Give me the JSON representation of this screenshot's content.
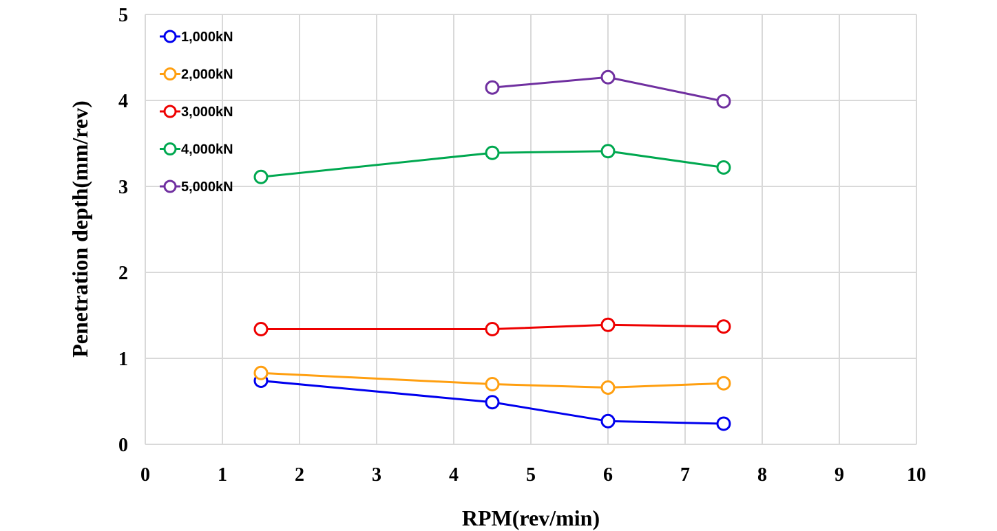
{
  "chart_data": {
    "type": "line",
    "title": "",
    "xlabel": "RPM(rev/min)",
    "ylabel": "Penetration depth(mm/rev)",
    "xlim": [
      0,
      10
    ],
    "ylim": [
      0,
      5
    ],
    "x_ticks": [
      "0",
      "1",
      "2",
      "3",
      "4",
      "5",
      "6",
      "7",
      "8",
      "9",
      "10"
    ],
    "y_ticks": [
      "0",
      "1",
      "2",
      "3",
      "4",
      "5"
    ],
    "grid": true,
    "legend_position": "top-left",
    "series": [
      {
        "name": "1,000kN",
        "color": "#0000ee",
        "x": [
          1.5,
          4.5,
          6,
          7.5
        ],
        "y": [
          0.74,
          0.49,
          0.27,
          0.24
        ]
      },
      {
        "name": "2,000kN",
        "color": "#ff9f10",
        "x": [
          1.5,
          4.5,
          6,
          7.5
        ],
        "y": [
          0.83,
          0.7,
          0.66,
          0.71
        ]
      },
      {
        "name": "3,000kN",
        "color": "#ee0000",
        "x": [
          1.5,
          4.5,
          6,
          7.5
        ],
        "y": [
          1.34,
          1.34,
          1.39,
          1.37
        ]
      },
      {
        "name": "4,000kN",
        "color": "#00a850",
        "x": [
          1.5,
          4.5,
          6,
          7.5
        ],
        "y": [
          3.11,
          3.39,
          3.41,
          3.22
        ]
      },
      {
        "name": "5,000kN",
        "color": "#7030a0",
        "x": [
          4.5,
          6,
          7.5
        ],
        "y": [
          4.15,
          4.27,
          3.99
        ]
      }
    ]
  }
}
